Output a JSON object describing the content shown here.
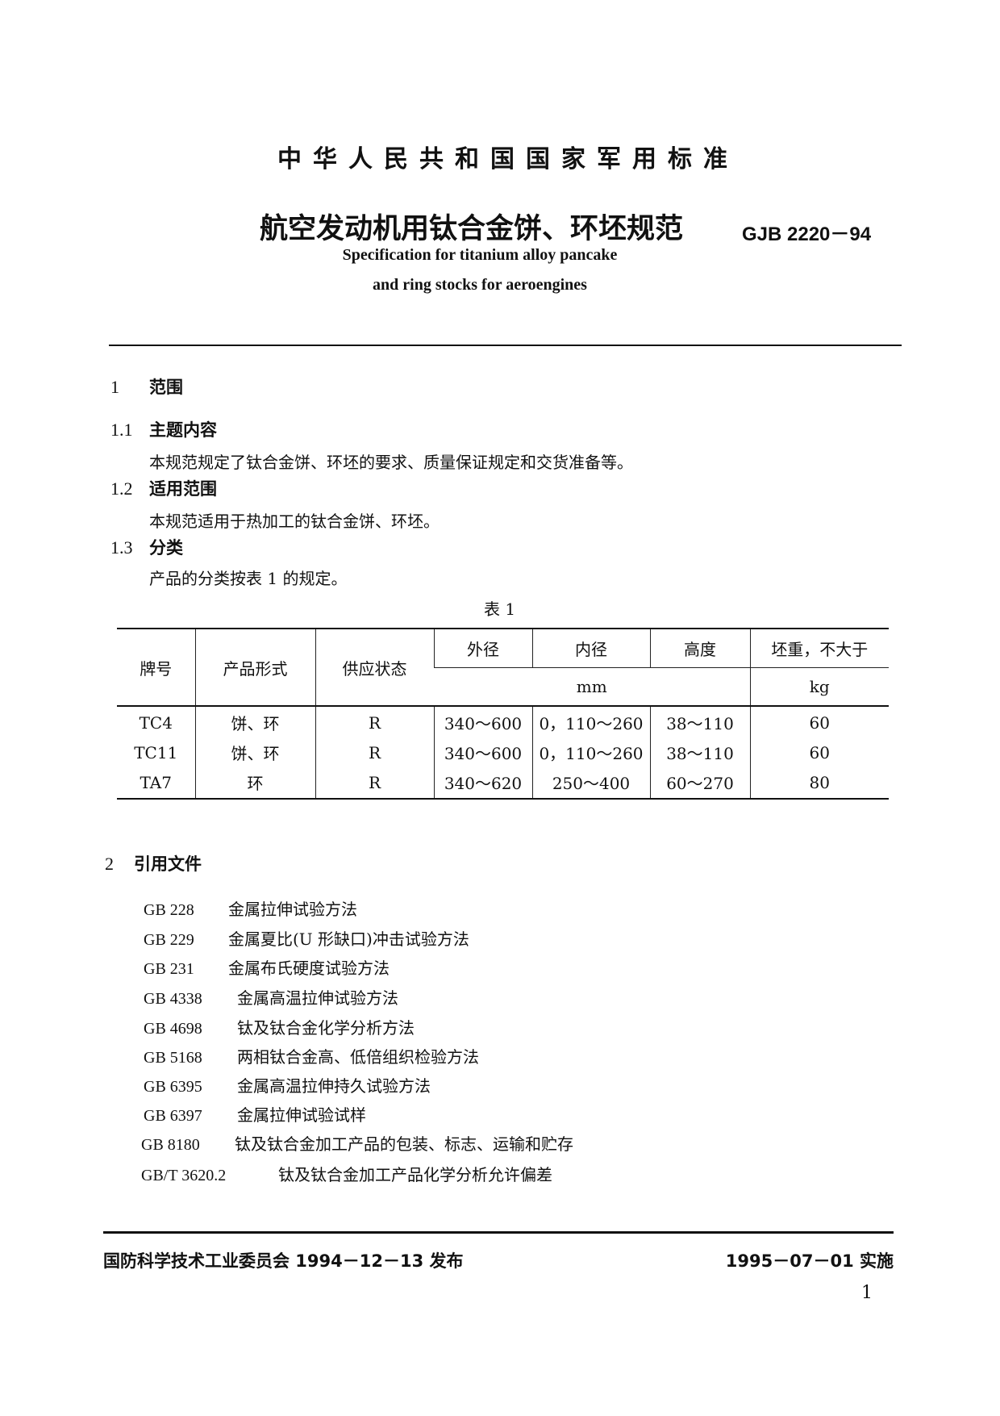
{
  "header": {
    "standard_type": "中华人民共和国国家军用标准",
    "title_cn": "航空发动机用钛合金饼、环坯规范",
    "code": "GJB 2220－94",
    "title_en_line1": "Specification for titanium alloy pancake",
    "title_en_line2": "and ring stocks for aeroengines"
  },
  "sections": {
    "s1": {
      "num": "1",
      "title": "范围"
    },
    "s1_1": {
      "num": "1.1",
      "title": "主题内容",
      "body": "本规范规定了钛合金饼、环坯的要求、质量保证规定和交货准备等。"
    },
    "s1_2": {
      "num": "1.2",
      "title": "适用范围",
      "body": "本规范适用于热加工的钛合金饼、环坯。"
    },
    "s1_3": {
      "num": "1.3",
      "title": "分类",
      "body": "产品的分类按表 1 的规定。"
    },
    "s2": {
      "num": "2",
      "title": "引用文件"
    }
  },
  "table1": {
    "caption": "表 1",
    "headers": {
      "grade": "牌号",
      "form": "产品形式",
      "state": "供应状态",
      "od": "外径",
      "id": "内径",
      "height": "高度",
      "weight": "坯重，不大于",
      "unit_mm": "mm",
      "unit_kg": "kg"
    },
    "rows": [
      [
        "TC4",
        "饼、环",
        "R",
        "340～600",
        "0，110～260",
        "38～110",
        "60"
      ],
      [
        "TC11",
        "饼、环",
        "R",
        "340～600",
        "0，110～260",
        "38～110",
        "60"
      ],
      [
        "TA7",
        "环",
        "R",
        "340～620",
        "250～400",
        "60～270",
        "80"
      ]
    ]
  },
  "references": [
    {
      "code": "GB 228",
      "name": "金属拉伸试验方法"
    },
    {
      "code": "GB 229",
      "name": "金属夏比(U 形缺口)冲击试验方法"
    },
    {
      "code": "GB 231",
      "name": "金属布氏硬度试验方法"
    },
    {
      "code": "GB 4338",
      "name": "金属高温拉伸试验方法"
    },
    {
      "code": "GB 4698",
      "name": "钛及钛合金化学分析方法"
    },
    {
      "code": "GB 5168",
      "name": "两相钛合金高、低倍组织检验方法"
    },
    {
      "code": "GB 6395",
      "name": "金属高温拉伸持久试验方法"
    },
    {
      "code": "GB 6397",
      "name": "金属拉伸试验试样"
    },
    {
      "code": "GB 8180",
      "name": "钛及钛合金加工产品的包装、标志、运输和贮存"
    },
    {
      "code": "GB/T 3620.2",
      "name": "钛及钛合金加工产品化学分析允许偏差"
    }
  ],
  "footer": {
    "issued": "国防科学技术工业委员会 1994－12－13 发布",
    "effective": "1995－07－01 实施",
    "page": "1"
  }
}
